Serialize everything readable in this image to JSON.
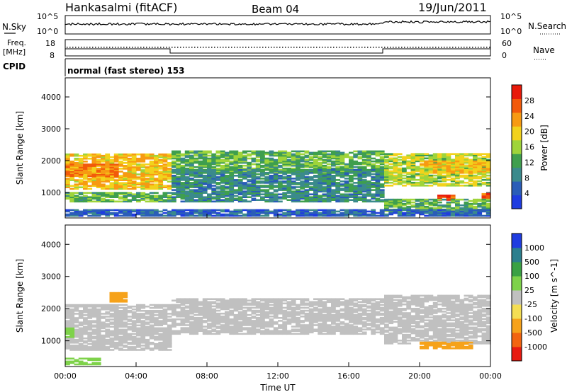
{
  "header": {
    "station": "Hankasalmi (fitACF)",
    "beam": "Beam 04",
    "date": "19/Jun/2011"
  },
  "top_panels": {
    "nsky_label": "N.Sky",
    "nsky_ticks": [
      "10^5",
      "10^0"
    ],
    "nsearch_label": "N.Search",
    "nsearch_ticks": [
      "10^5",
      "10^0"
    ],
    "freq_label_1": "Freq.",
    "freq_label_2": "[MHz]",
    "freq_ticks": [
      "18",
      "8"
    ],
    "nave_label": "Nave",
    "nave_ticks": [
      "60",
      "0"
    ],
    "cpid_label": "CPID",
    "mode_text": "normal (fast stereo) 153"
  },
  "colors": {
    "power_bar": [
      "#1f3ce0",
      "#2a5db8",
      "#3b8a8c",
      "#3f9f4e",
      "#9fd43a",
      "#f2d21c",
      "#f79a12",
      "#f25a0a",
      "#e81a0a"
    ],
    "velocity_bar": [
      "#1f3ce0",
      "#2c7f8e",
      "#3aa144",
      "#7ed24a",
      "#c0c0c0",
      "#f4de54",
      "#f6a21a",
      "#f26410",
      "#e81a10"
    ],
    "grey": "#c0c0c0"
  },
  "chart_data": [
    {
      "type": "heatmap",
      "name": "power",
      "ylabel": "Slant Range [km]",
      "yticks": [
        "1000",
        "2000",
        "3000",
        "4000"
      ],
      "ylim": [
        200,
        4600
      ],
      "xlim_hours": [
        0,
        24
      ],
      "colorbar_label": "Power [dB]",
      "colorbar_ticks": [
        "4",
        "8",
        "12",
        "16",
        "20",
        "24",
        "28"
      ],
      "colorbar_range": [
        0,
        30
      ],
      "bands": [
        {
          "t": [
            0.0,
            6.0
          ],
          "r": [
            1100,
            2200
          ],
          "level": 20
        },
        {
          "t": [
            0.0,
            3.0
          ],
          "r": [
            1500,
            1900
          ],
          "level": 24
        },
        {
          "t": [
            6.0,
            17.8
          ],
          "r": [
            1600,
            2300
          ],
          "level": 12
        },
        {
          "t": [
            0.0,
            6.0
          ],
          "r": [
            700,
            1000
          ],
          "level": 12
        },
        {
          "t": [
            6.0,
            18.0
          ],
          "r": [
            700,
            1700
          ],
          "level": 8
        },
        {
          "t": [
            18.0,
            24.0
          ],
          "r": [
            1200,
            2200
          ],
          "level": 16
        },
        {
          "t": [
            20.0,
            24.0
          ],
          "r": [
            1600,
            2000
          ],
          "level": 20
        },
        {
          "t": [
            21.0,
            22.0
          ],
          "r": [
            750,
            900
          ],
          "level": 28
        },
        {
          "t": [
            23.5,
            24.0
          ],
          "r": [
            800,
            950
          ],
          "level": 28
        },
        {
          "t": [
            18.0,
            24.0
          ],
          "r": [
            400,
            800
          ],
          "level": 12
        },
        {
          "t": [
            0.0,
            24.0
          ],
          "r": [
            250,
            450
          ],
          "level": 4
        }
      ]
    },
    {
      "type": "heatmap",
      "name": "velocity",
      "ylabel": "Slant Range [km]",
      "yticks": [
        "1000",
        "2000",
        "3000",
        "4000"
      ],
      "ylim": [
        200,
        4600
      ],
      "xlim_hours": [
        0,
        24
      ],
      "xlabel": "Time UT",
      "xticks": [
        "00:00",
        "04:00",
        "08:00",
        "12:00",
        "16:00",
        "20:00",
        "00:00"
      ],
      "colorbar_label": "Velocity [m s^-1]",
      "colorbar_ticks": [
        "1000",
        "500",
        "100",
        "25",
        "-25",
        "-100",
        "-500",
        "-1000"
      ],
      "bands": [
        {
          "t": [
            0.0,
            6.0
          ],
          "r": [
            700,
            2100
          ],
          "v": 0
        },
        {
          "t": [
            6.0,
            18.0
          ],
          "r": [
            1200,
            2300
          ],
          "v": 0
        },
        {
          "t": [
            18.0,
            24.0
          ],
          "r": [
            900,
            2400
          ],
          "v": 0
        },
        {
          "t": [
            2.5,
            3.5
          ],
          "r": [
            2200,
            2500
          ],
          "v": -200
        },
        {
          "t": [
            20.0,
            23.0
          ],
          "r": [
            750,
            950
          ],
          "v": -200
        },
        {
          "t": [
            0.0,
            0.5
          ],
          "r": [
            1100,
            1400
          ],
          "v": 120
        },
        {
          "t": [
            0.0,
            2.0
          ],
          "r": [
            250,
            450
          ],
          "v": 150
        }
      ]
    }
  ]
}
